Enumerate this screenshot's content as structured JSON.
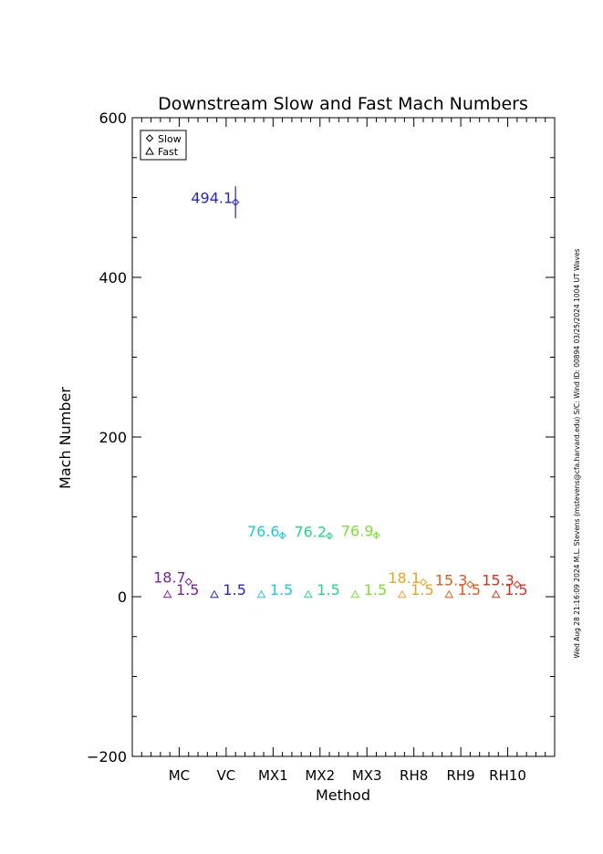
{
  "chart_data": {
    "type": "scatter",
    "title": "Downstream Slow and Fast Mach Numbers",
    "xlabel": "Method",
    "ylabel": "Mach Number",
    "ylim": [
      -200,
      600
    ],
    "yticks": [
      "−200",
      "0",
      "200",
      "400",
      "600"
    ],
    "categories": [
      "MC",
      "VC",
      "MX1",
      "MX2",
      "MX3",
      "RH8",
      "RH9",
      "RH10"
    ],
    "grid": false,
    "legend": {
      "placement": "top-left",
      "entries": [
        "Slow",
        "Fast"
      ]
    },
    "series": [
      {
        "name": "Slow",
        "marker": "diamond",
        "points": [
          {
            "category": "MC",
            "value": 18.7,
            "label": "18.7",
            "err": 0,
            "color": "#7a1fa2"
          },
          {
            "category": "VC",
            "value": 494.1,
            "label": "494.1",
            "err": 20,
            "color": "#2424d6"
          },
          {
            "category": "MX1",
            "value": 76.6,
            "label": "76.6",
            "err": 3,
            "color": "#1ec8e0"
          },
          {
            "category": "MX2",
            "value": 76.2,
            "label": "76.2",
            "err": 3,
            "color": "#20d68c"
          },
          {
            "category": "MX3",
            "value": 76.9,
            "label": "76.9",
            "err": 3,
            "color": "#7ae030"
          },
          {
            "category": "RH8",
            "value": 18.1,
            "label": "18.1",
            "err": 0,
            "color": "#f0a020"
          },
          {
            "category": "RH9",
            "value": 15.3,
            "label": "15.3",
            "err": 0,
            "color": "#e8581a"
          },
          {
            "category": "RH10",
            "value": 15.3,
            "label": "15.3",
            "err": 0,
            "color": "#d83020"
          }
        ]
      },
      {
        "name": "Fast",
        "marker": "triangle",
        "points": [
          {
            "category": "MC",
            "value": 1.5,
            "label": "1.5",
            "color": "#7a1fa2"
          },
          {
            "category": "VC",
            "value": 1.5,
            "label": "1.5",
            "color": "#2424d6"
          },
          {
            "category": "MX1",
            "value": 1.5,
            "label": "1.5",
            "color": "#1ec8e0"
          },
          {
            "category": "MX2",
            "value": 1.5,
            "label": "1.5",
            "color": "#20d68c"
          },
          {
            "category": "MX3",
            "value": 1.5,
            "label": "1.5",
            "color": "#7ae030"
          },
          {
            "category": "RH8",
            "value": 1.5,
            "label": "1.5",
            "color": "#f0a020"
          },
          {
            "category": "RH9",
            "value": 1.5,
            "label": "1.5",
            "color": "#e8581a"
          },
          {
            "category": "RH10",
            "value": 1.5,
            "label": "1.5",
            "color": "#d83020"
          }
        ]
      }
    ],
    "side_note": "Wed Aug 28 21:16:09 2024  M.L. Stevens (mstevens@cfa.harvard.edu)  S/C: Wind ID: 00894 03/25/2024  1004 UT Waves"
  }
}
